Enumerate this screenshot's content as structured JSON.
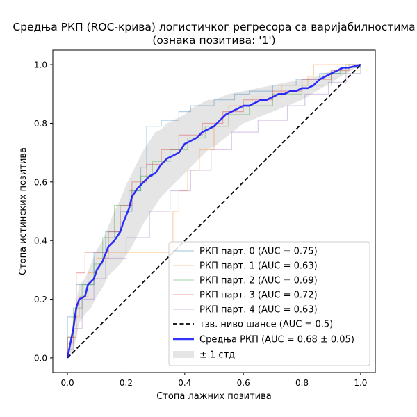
{
  "chart_data": {
    "type": "line",
    "title_line1": "Средња РКП (ROC-крива) логистичког регресора са варијабилностима",
    "title_line2": "(ознака позитива: '1')",
    "xlabel": "Стопа лажних позитива",
    "ylabel": "Стопа истинских позитива",
    "xlim": [
      -0.05,
      1.05
    ],
    "ylim": [
      -0.05,
      1.05
    ],
    "x_ticks": [
      0.0,
      0.2,
      0.4,
      0.6,
      0.8,
      1.0
    ],
    "y_ticks": [
      0.0,
      0.2,
      0.4,
      0.6,
      0.8,
      1.0
    ],
    "x_tick_labels": [
      "0.0",
      "0.2",
      "0.4",
      "0.6",
      "0.8",
      "1.0"
    ],
    "y_tick_labels": [
      "0.0",
      "0.2",
      "0.4",
      "0.6",
      "0.8",
      "1.0"
    ],
    "grid": false,
    "legend_position": "lower-right",
    "folds": [
      {
        "name": "РКП парт. 0 (AUC = 0.75)",
        "color": "#1f77b4",
        "points": [
          [
            0,
            0
          ],
          [
            0,
            0.14
          ],
          [
            0.03,
            0.14
          ],
          [
            0.03,
            0.25
          ],
          [
            0.09,
            0.25
          ],
          [
            0.09,
            0.36
          ],
          [
            0.13,
            0.36
          ],
          [
            0.13,
            0.43
          ],
          [
            0.18,
            0.43
          ],
          [
            0.18,
            0.5
          ],
          [
            0.22,
            0.5
          ],
          [
            0.22,
            0.57
          ],
          [
            0.25,
            0.57
          ],
          [
            0.25,
            0.65
          ],
          [
            0.27,
            0.65
          ],
          [
            0.27,
            0.79
          ],
          [
            0.32,
            0.79
          ],
          [
            0.32,
            0.81
          ],
          [
            0.38,
            0.81
          ],
          [
            0.38,
            0.84
          ],
          [
            0.42,
            0.84
          ],
          [
            0.42,
            0.86
          ],
          [
            0.5,
            0.86
          ],
          [
            0.5,
            0.88
          ],
          [
            0.57,
            0.88
          ],
          [
            0.57,
            0.9
          ],
          [
            0.62,
            0.9
          ],
          [
            0.62,
            0.91
          ],
          [
            0.7,
            0.91
          ],
          [
            0.7,
            0.93
          ],
          [
            0.78,
            0.93
          ],
          [
            0.78,
            0.95
          ],
          [
            0.86,
            0.95
          ],
          [
            0.86,
            0.97
          ],
          [
            0.93,
            0.97
          ],
          [
            0.93,
            0.99
          ],
          [
            1,
            0.99
          ],
          [
            1,
            1
          ]
        ]
      },
      {
        "name": "РКП парт. 1 (AUC = 0.63)",
        "color": "#ff7f0e",
        "points": [
          [
            0,
            0
          ],
          [
            0,
            0.05
          ],
          [
            0.02,
            0.05
          ],
          [
            0.02,
            0.14
          ],
          [
            0.04,
            0.14
          ],
          [
            0.04,
            0.21
          ],
          [
            0.07,
            0.21
          ],
          [
            0.07,
            0.29
          ],
          [
            0.1,
            0.29
          ],
          [
            0.1,
            0.34
          ],
          [
            0.14,
            0.34
          ],
          [
            0.14,
            0.36
          ],
          [
            0.36,
            0.36
          ],
          [
            0.36,
            0.5
          ],
          [
            0.38,
            0.5
          ],
          [
            0.38,
            0.57
          ],
          [
            0.41,
            0.57
          ],
          [
            0.41,
            0.64
          ],
          [
            0.45,
            0.64
          ],
          [
            0.45,
            0.71
          ],
          [
            0.5,
            0.71
          ],
          [
            0.5,
            0.79
          ],
          [
            0.55,
            0.79
          ],
          [
            0.55,
            0.86
          ],
          [
            0.63,
            0.86
          ],
          [
            0.63,
            0.89
          ],
          [
            0.73,
            0.89
          ],
          [
            0.73,
            0.93
          ],
          [
            0.82,
            0.93
          ],
          [
            0.82,
            0.96
          ],
          [
            0.84,
            0.96
          ],
          [
            0.84,
            1.0
          ],
          [
            0.9,
            1.0
          ],
          [
            1,
            1
          ]
        ]
      },
      {
        "name": "РКП парт. 2 (AUC = 0.69)",
        "color": "#2ca02c",
        "points": [
          [
            0,
            0
          ],
          [
            0,
            0.07
          ],
          [
            0.02,
            0.07
          ],
          [
            0.02,
            0.17
          ],
          [
            0.05,
            0.17
          ],
          [
            0.05,
            0.25
          ],
          [
            0.09,
            0.25
          ],
          [
            0.09,
            0.32
          ],
          [
            0.12,
            0.32
          ],
          [
            0.12,
            0.41
          ],
          [
            0.16,
            0.41
          ],
          [
            0.16,
            0.52
          ],
          [
            0.21,
            0.52
          ],
          [
            0.21,
            0.57
          ],
          [
            0.25,
            0.57
          ],
          [
            0.25,
            0.62
          ],
          [
            0.29,
            0.62
          ],
          [
            0.29,
            0.67
          ],
          [
            0.35,
            0.67
          ],
          [
            0.35,
            0.71
          ],
          [
            0.41,
            0.71
          ],
          [
            0.41,
            0.75
          ],
          [
            0.47,
            0.75
          ],
          [
            0.47,
            0.79
          ],
          [
            0.55,
            0.79
          ],
          [
            0.55,
            0.83
          ],
          [
            0.62,
            0.83
          ],
          [
            0.62,
            0.86
          ],
          [
            0.7,
            0.86
          ],
          [
            0.7,
            0.9
          ],
          [
            0.8,
            0.9
          ],
          [
            0.8,
            0.93
          ],
          [
            0.9,
            0.93
          ],
          [
            0.9,
            0.97
          ],
          [
            0.95,
            0.97
          ],
          [
            0.95,
            1.0
          ],
          [
            1,
            1
          ]
        ]
      },
      {
        "name": "РКП парт. 3 (AUC = 0.72)",
        "color": "#d62728",
        "points": [
          [
            0,
            0
          ],
          [
            0,
            0.07
          ],
          [
            0.03,
            0.07
          ],
          [
            0.03,
            0.29
          ],
          [
            0.06,
            0.29
          ],
          [
            0.06,
            0.36
          ],
          [
            0.14,
            0.36
          ],
          [
            0.14,
            0.43
          ],
          [
            0.18,
            0.43
          ],
          [
            0.18,
            0.52
          ],
          [
            0.22,
            0.52
          ],
          [
            0.22,
            0.6
          ],
          [
            0.27,
            0.6
          ],
          [
            0.27,
            0.66
          ],
          [
            0.32,
            0.66
          ],
          [
            0.32,
            0.71
          ],
          [
            0.38,
            0.71
          ],
          [
            0.38,
            0.76
          ],
          [
            0.46,
            0.76
          ],
          [
            0.46,
            0.8
          ],
          [
            0.53,
            0.8
          ],
          [
            0.53,
            0.84
          ],
          [
            0.6,
            0.84
          ],
          [
            0.6,
            0.88
          ],
          [
            0.7,
            0.88
          ],
          [
            0.7,
            0.91
          ],
          [
            0.8,
            0.91
          ],
          [
            0.8,
            0.95
          ],
          [
            0.9,
            0.95
          ],
          [
            0.9,
            0.98
          ],
          [
            0.96,
            0.98
          ],
          [
            0.96,
            1.0
          ],
          [
            1,
            1
          ]
        ]
      },
      {
        "name": "РКП парт. 4 (AUC = 0.63)",
        "color": "#9467bd",
        "points": [
          [
            0,
            0
          ],
          [
            0,
            0.03
          ],
          [
            0.02,
            0.03
          ],
          [
            0.02,
            0.1
          ],
          [
            0.05,
            0.1
          ],
          [
            0.05,
            0.2
          ],
          [
            0.09,
            0.2
          ],
          [
            0.09,
            0.27
          ],
          [
            0.13,
            0.27
          ],
          [
            0.13,
            0.34
          ],
          [
            0.2,
            0.34
          ],
          [
            0.2,
            0.41
          ],
          [
            0.28,
            0.41
          ],
          [
            0.28,
            0.5
          ],
          [
            0.35,
            0.5
          ],
          [
            0.35,
            0.57
          ],
          [
            0.42,
            0.57
          ],
          [
            0.42,
            0.64
          ],
          [
            0.49,
            0.64
          ],
          [
            0.49,
            0.71
          ],
          [
            0.56,
            0.71
          ],
          [
            0.56,
            0.77
          ],
          [
            0.65,
            0.77
          ],
          [
            0.65,
            0.81
          ],
          [
            0.75,
            0.81
          ],
          [
            0.75,
            0.86
          ],
          [
            0.81,
            0.86
          ],
          [
            0.81,
            0.9
          ],
          [
            0.89,
            0.9
          ],
          [
            0.89,
            0.94
          ],
          [
            0.95,
            0.94
          ],
          [
            0.95,
            0.97
          ],
          [
            1,
            0.97
          ],
          [
            1,
            1
          ]
        ]
      }
    ],
    "chance": {
      "name": "тзв. ниво шансе (AUC = 0.5)",
      "color": "#000000",
      "points": [
        [
          0,
          0
        ],
        [
          1,
          1
        ]
      ]
    },
    "mean": {
      "name": "Средња РКП (AUC = 0.68 ± 0.05)",
      "color": "#0000ff",
      "points": [
        [
          0,
          0
        ],
        [
          0.01,
          0.05
        ],
        [
          0.02,
          0.1
        ],
        [
          0.03,
          0.17
        ],
        [
          0.04,
          0.2
        ],
        [
          0.06,
          0.21
        ],
        [
          0.07,
          0.25
        ],
        [
          0.09,
          0.27
        ],
        [
          0.1,
          0.3
        ],
        [
          0.12,
          0.33
        ],
        [
          0.14,
          0.38
        ],
        [
          0.16,
          0.4
        ],
        [
          0.18,
          0.43
        ],
        [
          0.19,
          0.46
        ],
        [
          0.21,
          0.51
        ],
        [
          0.22,
          0.55
        ],
        [
          0.24,
          0.58
        ],
        [
          0.26,
          0.6
        ],
        [
          0.28,
          0.62
        ],
        [
          0.3,
          0.63
        ],
        [
          0.32,
          0.66
        ],
        [
          0.34,
          0.68
        ],
        [
          0.36,
          0.69
        ],
        [
          0.38,
          0.7
        ],
        [
          0.4,
          0.73
        ],
        [
          0.42,
          0.74
        ],
        [
          0.44,
          0.75
        ],
        [
          0.46,
          0.77
        ],
        [
          0.48,
          0.78
        ],
        [
          0.5,
          0.79
        ],
        [
          0.52,
          0.81
        ],
        [
          0.54,
          0.83
        ],
        [
          0.56,
          0.84
        ],
        [
          0.58,
          0.85
        ],
        [
          0.6,
          0.86
        ],
        [
          0.62,
          0.86
        ],
        [
          0.64,
          0.87
        ],
        [
          0.66,
          0.88
        ],
        [
          0.68,
          0.88
        ],
        [
          0.7,
          0.89
        ],
        [
          0.72,
          0.9
        ],
        [
          0.74,
          0.9
        ],
        [
          0.76,
          0.91
        ],
        [
          0.78,
          0.91
        ],
        [
          0.8,
          0.92
        ],
        [
          0.82,
          0.92
        ],
        [
          0.84,
          0.93
        ],
        [
          0.86,
          0.95
        ],
        [
          0.88,
          0.96
        ],
        [
          0.9,
          0.97
        ],
        [
          0.92,
          0.98
        ],
        [
          0.94,
          0.99
        ],
        [
          0.96,
          0.99
        ],
        [
          0.98,
          0.995
        ],
        [
          1,
          1
        ]
      ]
    },
    "band": {
      "name": "± 1 стд",
      "color": "#bfbfbf",
      "upper": [
        [
          0,
          0
        ],
        [
          0.02,
          0.13
        ],
        [
          0.04,
          0.25
        ],
        [
          0.06,
          0.27
        ],
        [
          0.08,
          0.32
        ],
        [
          0.1,
          0.37
        ],
        [
          0.12,
          0.4
        ],
        [
          0.14,
          0.45
        ],
        [
          0.16,
          0.5
        ],
        [
          0.18,
          0.54
        ],
        [
          0.2,
          0.59
        ],
        [
          0.22,
          0.63
        ],
        [
          0.24,
          0.67
        ],
        [
          0.26,
          0.71
        ],
        [
          0.28,
          0.74
        ],
        [
          0.3,
          0.77
        ],
        [
          0.32,
          0.78
        ],
        [
          0.34,
          0.8
        ],
        [
          0.36,
          0.81
        ],
        [
          0.38,
          0.82
        ],
        [
          0.4,
          0.83
        ],
        [
          0.42,
          0.85
        ],
        [
          0.44,
          0.86
        ],
        [
          0.46,
          0.87
        ],
        [
          0.48,
          0.88
        ],
        [
          0.5,
          0.88
        ],
        [
          0.55,
          0.9
        ],
        [
          0.6,
          0.91
        ],
        [
          0.65,
          0.92
        ],
        [
          0.7,
          0.93
        ],
        [
          0.75,
          0.94
        ],
        [
          0.8,
          0.95
        ],
        [
          0.85,
          0.96
        ],
        [
          0.9,
          0.98
        ],
        [
          0.95,
          0.99
        ],
        [
          1,
          1
        ]
      ],
      "lower": [
        [
          0,
          0
        ],
        [
          0.02,
          0.02
        ],
        [
          0.04,
          0.12
        ],
        [
          0.06,
          0.15
        ],
        [
          0.08,
          0.17
        ],
        [
          0.1,
          0.21
        ],
        [
          0.12,
          0.24
        ],
        [
          0.14,
          0.28
        ],
        [
          0.16,
          0.3
        ],
        [
          0.18,
          0.32
        ],
        [
          0.2,
          0.35
        ],
        [
          0.22,
          0.38
        ],
        [
          0.24,
          0.42
        ],
        [
          0.26,
          0.46
        ],
        [
          0.28,
          0.49
        ],
        [
          0.3,
          0.52
        ],
        [
          0.32,
          0.55
        ],
        [
          0.34,
          0.57
        ],
        [
          0.36,
          0.59
        ],
        [
          0.38,
          0.61
        ],
        [
          0.4,
          0.63
        ],
        [
          0.42,
          0.65
        ],
        [
          0.44,
          0.67
        ],
        [
          0.46,
          0.69
        ],
        [
          0.48,
          0.71
        ],
        [
          0.5,
          0.72
        ],
        [
          0.55,
          0.76
        ],
        [
          0.6,
          0.8
        ],
        [
          0.65,
          0.82
        ],
        [
          0.7,
          0.84
        ],
        [
          0.75,
          0.86
        ],
        [
          0.8,
          0.88
        ],
        [
          0.85,
          0.91
        ],
        [
          0.9,
          0.94
        ],
        [
          0.95,
          0.97
        ],
        [
          1,
          1
        ]
      ]
    }
  }
}
